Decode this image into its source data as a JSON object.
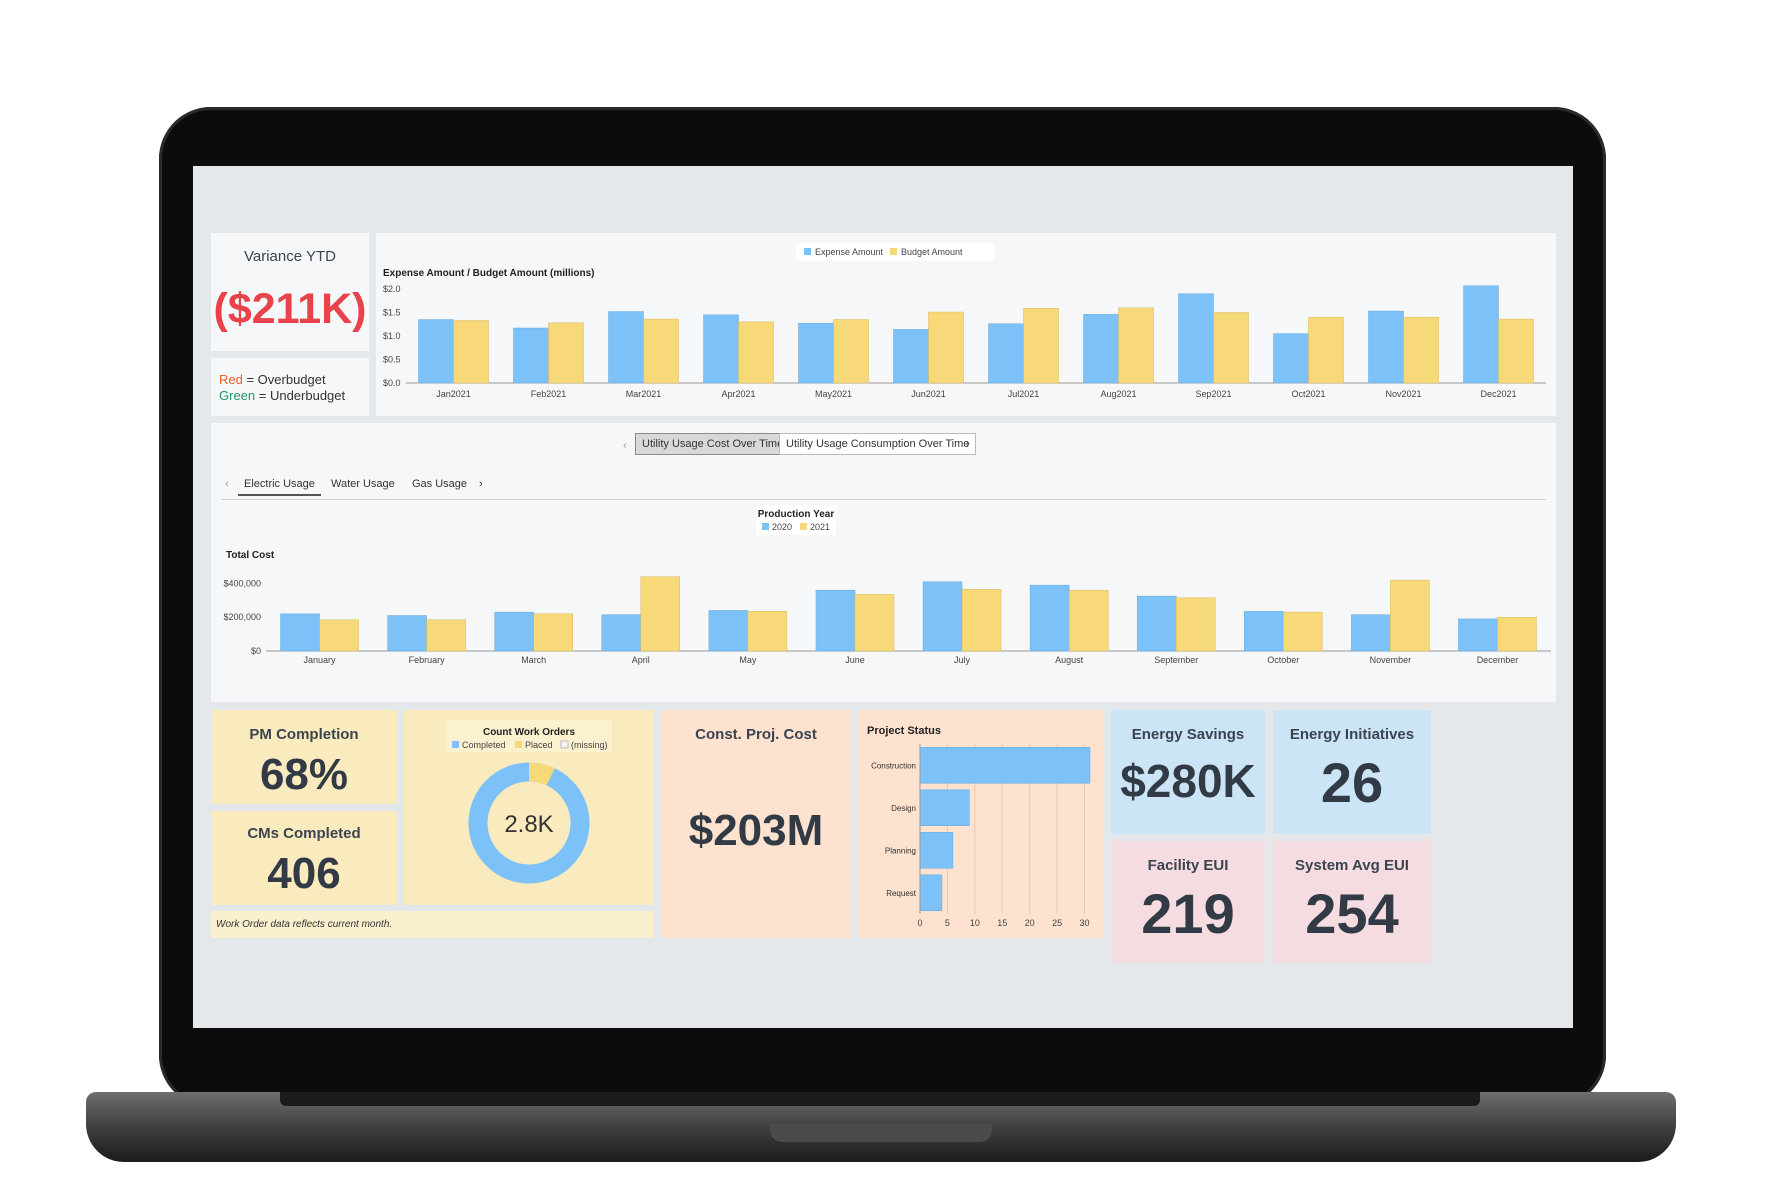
{
  "colors": {
    "blue": "#7cc1f7",
    "yellow": "#f8d97a",
    "red": "#e8434a",
    "green": "#1c9a6b"
  },
  "variance": {
    "title": "Variance YTD",
    "value": "($211K)",
    "legend": {
      "red_word": "Red",
      "red_rest": " = Overbudget",
      "green_word": "Green",
      "green_rest": " = Underbudget"
    }
  },
  "expense_chart": {
    "legend": [
      "Expense Amount",
      "Budget Amount"
    ],
    "title": "Expense Amount / Budget Amount (millions)",
    "y_ticks": [
      "$2.0",
      "$1.5",
      "$1.0",
      "$0.5",
      "$0.0"
    ],
    "categories": [
      "Jan2021",
      "Feb2021",
      "Mar2021",
      "Apr2021",
      "May2021",
      "Jun2021",
      "Jul2021",
      "Aug2021",
      "Sep2021",
      "Oct2021",
      "Nov2021",
      "Dec2021"
    ],
    "expense": [
      1.35,
      1.17,
      1.52,
      1.45,
      1.27,
      1.14,
      1.26,
      1.46,
      1.9,
      1.05,
      1.53,
      2.07
    ],
    "budget": [
      1.33,
      1.28,
      1.36,
      1.3,
      1.35,
      1.51,
      1.59,
      1.6,
      1.5,
      1.4,
      1.4,
      1.36
    ]
  },
  "utility": {
    "top_tabs": [
      "Utility Usage Cost Over Time",
      "Utility Usage Consumption Over Time"
    ],
    "sub_tabs": [
      "Electric Usage",
      "Water Usage",
      "Gas Usage"
    ],
    "legend_title": "Production Year",
    "legend": [
      "2020",
      "2021"
    ],
    "y_label": "Total Cost",
    "y_ticks": [
      "$400,000",
      "$200,000",
      "$0"
    ],
    "categories": [
      "January",
      "February",
      "March",
      "April",
      "May",
      "June",
      "July",
      "August",
      "September",
      "October",
      "November",
      "December"
    ],
    "y2020": [
      220000,
      210000,
      230000,
      215000,
      240000,
      360000,
      410000,
      390000,
      325000,
      235000,
      215000,
      190000
    ],
    "y2021": [
      185000,
      185000,
      220000,
      440000,
      235000,
      335000,
      365000,
      360000,
      315000,
      230000,
      420000,
      200000
    ]
  },
  "pm": {
    "title": "PM Completion",
    "value": "68%"
  },
  "cm": {
    "title": "CMs Completed",
    "value": "406"
  },
  "work_orders": {
    "title": "Count Work Orders",
    "legend": [
      "Completed",
      "Placed",
      "(missing)"
    ],
    "center": "2.8K",
    "completed_fraction": 0.93,
    "placed_fraction": 0.07,
    "footnote": "Work Order data reflects current month."
  },
  "const_cost": {
    "title": "Const. Proj. Cost",
    "value": "$203M"
  },
  "project_status": {
    "title": "Project Status",
    "categories": [
      "Construction",
      "Design",
      "Planning",
      "Request"
    ],
    "values": [
      31,
      9,
      6,
      4
    ],
    "x_ticks": [
      "0",
      "5",
      "10",
      "15",
      "20",
      "25",
      "30"
    ]
  },
  "energy_savings": {
    "title": "Energy Savings",
    "value": "$280K"
  },
  "energy_initiatives": {
    "title": "Energy Initiatives",
    "value": "26"
  },
  "facility_eui": {
    "title": "Facility EUI",
    "value": "219"
  },
  "system_eui": {
    "title": "System Avg EUI",
    "value": "254"
  }
}
